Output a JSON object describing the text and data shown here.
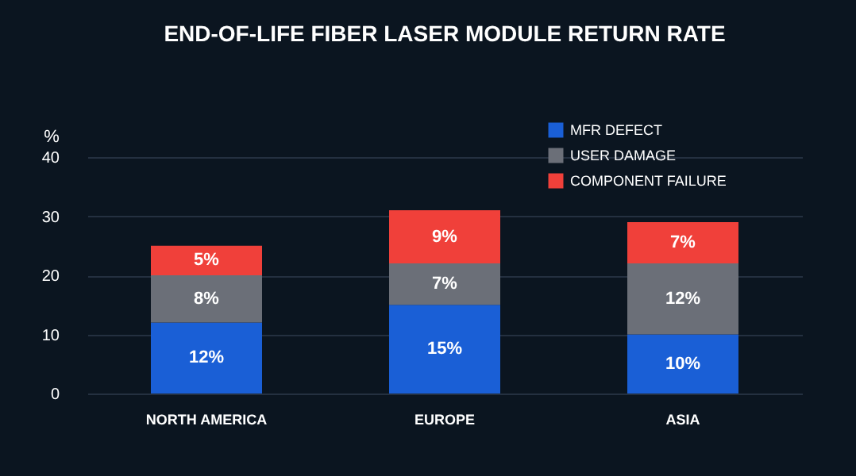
{
  "chart_data": {
    "type": "bar",
    "title": "END-OF-LIFE FIBER LASER MODULE RETURN RATE",
    "ylabel": "%",
    "categories": [
      "NORTH AMERICA",
      "EUROPE",
      "ASIA"
    ],
    "stacked": true,
    "series": [
      {
        "name": "MFR DEFECT",
        "color": "#1a5fd6",
        "values": [
          12,
          15,
          10
        ],
        "value_labels": [
          "12%",
          "15%",
          "10%"
        ]
      },
      {
        "name": "USER DAMAGE",
        "color": "#6b6f78",
        "values": [
          8,
          7,
          12
        ],
        "value_labels": [
          "8%",
          "7%",
          "12%"
        ]
      },
      {
        "name": "COMPONENT FAILURE",
        "color": "#f0403a",
        "values": [
          5,
          9,
          7
        ],
        "value_labels": [
          "5%",
          "9%",
          "7%"
        ]
      }
    ],
    "ylim": [
      0,
      40
    ],
    "yticks": [
      0,
      10,
      20,
      30,
      40
    ],
    "grid": "y",
    "legend": "top right"
  }
}
